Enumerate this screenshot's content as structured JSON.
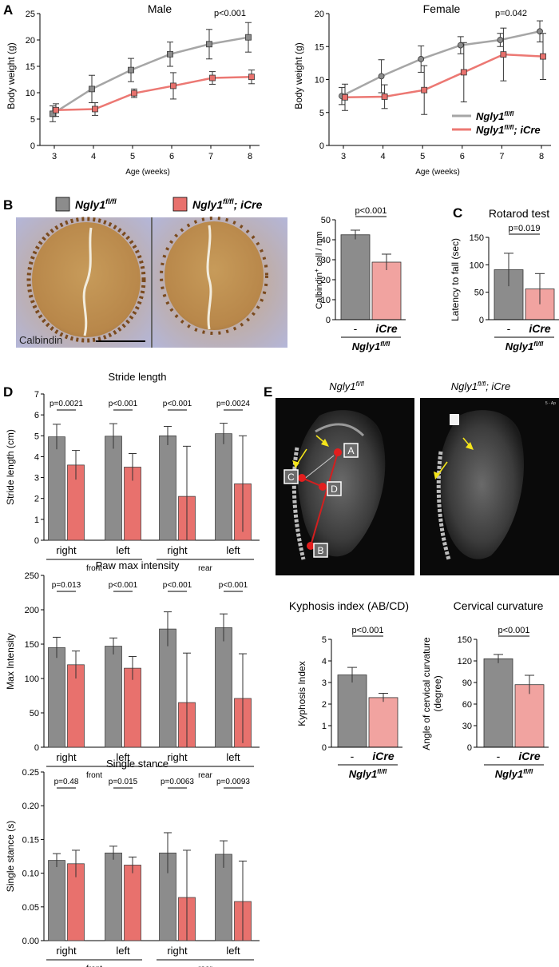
{
  "colors": {
    "gray": "#8c8c8c",
    "gray_line": "#a6a6a6",
    "red": "#e8716d",
    "red_line": "#ec7873",
    "bar_pink": "#f1a3a0"
  },
  "panels": {
    "A": {
      "letter": "A",
      "male": {
        "title": "Male",
        "pvalue": "p<0.001",
        "ylabel": "Body weight (g)",
        "xlabel": "Age (weeks)",
        "x": [
          3,
          4,
          5,
          6,
          7,
          8
        ],
        "yticks": [
          "0",
          "5",
          "10",
          "15",
          "20",
          "25"
        ],
        "ylim": [
          0,
          25
        ],
        "gray": {
          "mean": [
            6.0,
            10.7,
            14.3,
            17.3,
            19.2,
            20.5
          ],
          "sd": [
            1.5,
            2.6,
            2.2,
            2.3,
            2.8,
            2.8
          ]
        },
        "red": {
          "mean": [
            6.7,
            6.9,
            9.9,
            11.3,
            12.8,
            13.0
          ],
          "sd": [
            1.2,
            1.2,
            0.8,
            2.5,
            1.2,
            1.3
          ]
        }
      },
      "female": {
        "title": "Female",
        "pvalue": "p=0.042",
        "ylabel": "Body weight (g)",
        "xlabel": "Age (weeks)",
        "x": [
          3,
          4,
          5,
          6,
          7,
          8
        ],
        "yticks": [
          "0",
          "5",
          "10",
          "15",
          "20"
        ],
        "ylim": [
          0,
          20
        ],
        "gray": {
          "mean": [
            7.5,
            10.5,
            13.1,
            15.2,
            16.0,
            17.3
          ],
          "sd": [
            1.3,
            2.5,
            2.0,
            1.3,
            1.0,
            1.6
          ]
        },
        "red": {
          "mean": [
            7.3,
            7.4,
            8.4,
            11.1,
            13.8,
            13.5
          ],
          "sd": [
            2.0,
            1.8,
            3.7,
            4.5,
            4.0,
            3.5
          ]
        }
      },
      "legend": [
        {
          "name": "Ngly1",
          "sup": "fl/fl",
          "suffix": ""
        },
        {
          "name": "Ngly1",
          "sup": "fl/fl",
          "suffix": "; iCre"
        }
      ]
    },
    "B": {
      "letter": "B",
      "legend": [
        {
          "name": "Ngly1",
          "sup": "fl/fl",
          "suffix": ""
        },
        {
          "name": "Ngly1",
          "sup": "fl/fl",
          "suffix": "; iCre"
        }
      ],
      "stain_label": "Calbindin",
      "chart": {
        "ylabel_main": "Calbindin",
        "ylabel_sup": "+",
        "ylabel_rest": " cell / mm",
        "pvalue": "p<0.001",
        "yticks": [
          "0",
          "10",
          "20",
          "30",
          "40",
          "50"
        ],
        "ylim": [
          0,
          50
        ],
        "categories": [
          "-",
          "iCre"
        ],
        "values": [
          42.5,
          28.8
        ],
        "sd": [
          2.3,
          4.0
        ],
        "group_label": "Ngly1",
        "group_sup": "fl/fl"
      }
    },
    "C": {
      "letter": "C",
      "title": "Rotarod test",
      "chart": {
        "ylabel": "Latency to fall (sec)",
        "pvalue": "p=0.019",
        "yticks": [
          "0",
          "50",
          "100",
          "150"
        ],
        "ylim": [
          0,
          150
        ],
        "categories": [
          "-",
          "iCre"
        ],
        "values": [
          91,
          56
        ],
        "sd": [
          30,
          28
        ],
        "group_label": "Ngly1",
        "group_sup": "fl/fl"
      }
    },
    "D": {
      "letter": "D",
      "charts": [
        {
          "title": "Stride length",
          "ylabel": "Stride length (cm)",
          "yticks": [
            "0",
            "1",
            "2",
            "3",
            "4",
            "5",
            "6",
            "7"
          ],
          "ylim": [
            0,
            7
          ],
          "pvalues": [
            "p=0.0021",
            "p<0.001",
            "p<0.001",
            "p=0.0024"
          ],
          "values": [
            [
              4.95,
              3.6
            ],
            [
              4.98,
              3.5
            ],
            [
              5.0,
              2.1
            ],
            [
              5.1,
              2.7
            ]
          ],
          "sd": [
            [
              0.6,
              0.7
            ],
            [
              0.6,
              0.65
            ],
            [
              0.45,
              2.4
            ],
            [
              0.5,
              2.3
            ]
          ]
        },
        {
          "title": "Paw max intensity",
          "ylabel": "Max Intensity",
          "yticks": [
            "0",
            "50",
            "100",
            "150",
            "200",
            "250"
          ],
          "ylim": [
            0,
            250
          ],
          "pvalues": [
            "p=0.013",
            "p<0.001",
            "p<0.001",
            "p<0.001"
          ],
          "values": [
            [
              145,
              120
            ],
            [
              147,
              115
            ],
            [
              172,
              65
            ],
            [
              174,
              71
            ]
          ],
          "sd": [
            [
              15,
              20
            ],
            [
              12,
              17
            ],
            [
              25,
              72
            ],
            [
              20,
              65
            ]
          ]
        },
        {
          "title": "Single stance",
          "ylabel": "Single stance (s)",
          "yticks": [
            "0.00",
            "0.05",
            "0.10",
            "0.15",
            "0.20",
            "0.25"
          ],
          "ylim": [
            0,
            0.25
          ],
          "pvalues": [
            "p=0.48",
            "p=0.015",
            "p=0.0063",
            "p=0.0093"
          ],
          "values": [
            [
              0.119,
              0.114
            ],
            [
              0.13,
              0.112
            ],
            [
              0.13,
              0.064
            ],
            [
              0.128,
              0.058
            ]
          ],
          "sd": [
            [
              0.01,
              0.02
            ],
            [
              0.01,
              0.012
            ],
            [
              0.03,
              0.07
            ],
            [
              0.02,
              0.06
            ]
          ]
        }
      ],
      "sides": [
        "right",
        "left",
        "right",
        "left"
      ],
      "positions": [
        "front",
        "rear"
      ]
    },
    "E": {
      "letter": "E",
      "xray_titles": [
        {
          "name": "Ngly1",
          "sup": "fl/fl",
          "suffix": ""
        },
        {
          "name": "Ngly1",
          "sup": "fl/fl",
          "suffix": "; iCre"
        }
      ],
      "points": [
        "A",
        "B",
        "C",
        "D"
      ],
      "corner_text": "5 - Ap",
      "kyphosis": {
        "title": "Kyphosis index (AB/CD)",
        "ylabel": "Kyphosis Index",
        "pvalue": "p<0.001",
        "yticks": [
          "0",
          "1",
          "2",
          "3",
          "4",
          "5"
        ],
        "ylim": [
          0,
          5
        ],
        "categories": [
          "-",
          "iCre"
        ],
        "values": [
          3.35,
          2.3
        ],
        "sd": [
          0.35,
          0.2
        ],
        "group_label": "Ngly1",
        "group_sup": "fl/fl"
      },
      "cervical": {
        "title": "Cervical curvature",
        "ylabel": "Angle of cervical curvature (degree)",
        "ylabel_lines": [
          "Angle of cervical curvature",
          "(degree)"
        ],
        "pvalue": "p<0.001",
        "yticks": [
          "0",
          "30",
          "60",
          "90",
          "120",
          "150"
        ],
        "ylim": [
          0,
          150
        ],
        "categories": [
          "-",
          "iCre"
        ],
        "values": [
          123,
          87
        ],
        "sd": [
          6,
          13
        ],
        "group_label": "Ngly1",
        "group_sup": "fl/fl"
      }
    }
  },
  "chart_data": [
    {
      "type": "line",
      "title": "Male",
      "xlabel": "Age (weeks)",
      "ylabel": "Body weight (g)",
      "x": [
        3,
        4,
        5,
        6,
        7,
        8
      ],
      "ylim": [
        0,
        25
      ],
      "series": [
        {
          "name": "Ngly1 fl/fl",
          "values": [
            6.0,
            10.7,
            14.3,
            17.3,
            19.2,
            20.5
          ]
        },
        {
          "name": "Ngly1 fl/fl; iCre",
          "values": [
            6.7,
            6.9,
            9.9,
            11.3,
            12.8,
            13.0
          ]
        }
      ]
    },
    {
      "type": "line",
      "title": "Female",
      "xlabel": "Age (weeks)",
      "ylabel": "Body weight (g)",
      "x": [
        3,
        4,
        5,
        6,
        7,
        8
      ],
      "ylim": [
        0,
        20
      ],
      "series": [
        {
          "name": "Ngly1 fl/fl",
          "values": [
            7.5,
            10.5,
            13.1,
            15.2,
            16.0,
            17.3
          ]
        },
        {
          "name": "Ngly1 fl/fl; iCre",
          "values": [
            7.3,
            7.4,
            8.4,
            11.1,
            13.8,
            13.5
          ]
        }
      ]
    },
    {
      "type": "bar",
      "ylabel": "Calbindin+ cell / mm",
      "categories": [
        "-",
        "iCre"
      ],
      "values": [
        42.5,
        28.8
      ],
      "ylim": [
        0,
        50
      ]
    },
    {
      "type": "bar",
      "title": "Rotarod test",
      "ylabel": "Latency to fall (sec)",
      "categories": [
        "-",
        "iCre"
      ],
      "values": [
        91,
        56
      ],
      "ylim": [
        0,
        150
      ]
    },
    {
      "type": "bar",
      "title": "Stride length",
      "ylabel": "Stride length (cm)",
      "categories": [
        "front right",
        "front left",
        "rear right",
        "rear left"
      ],
      "series": [
        {
          "name": "Ngly1 fl/fl",
          "values": [
            4.95,
            4.98,
            5.0,
            5.1
          ]
        },
        {
          "name": "Ngly1 fl/fl; iCre",
          "values": [
            3.6,
            3.5,
            2.1,
            2.7
          ]
        }
      ],
      "ylim": [
        0,
        7
      ]
    },
    {
      "type": "bar",
      "title": "Paw max intensity",
      "ylabel": "Max Intensity",
      "categories": [
        "front right",
        "front left",
        "rear right",
        "rear left"
      ],
      "series": [
        {
          "name": "Ngly1 fl/fl",
          "values": [
            145,
            147,
            172,
            174
          ]
        },
        {
          "name": "Ngly1 fl/fl; iCre",
          "values": [
            120,
            115,
            65,
            71
          ]
        }
      ],
      "ylim": [
        0,
        250
      ]
    },
    {
      "type": "bar",
      "title": "Single stance",
      "ylabel": "Single stance (s)",
      "categories": [
        "front right",
        "front left",
        "rear right",
        "rear left"
      ],
      "series": [
        {
          "name": "Ngly1 fl/fl",
          "values": [
            0.119,
            0.13,
            0.13,
            0.128
          ]
        },
        {
          "name": "Ngly1 fl/fl; iCre",
          "values": [
            0.114,
            0.112,
            0.064,
            0.058
          ]
        }
      ],
      "ylim": [
        0,
        0.25
      ]
    },
    {
      "type": "bar",
      "title": "Kyphosis index (AB/CD)",
      "ylabel": "Kyphosis Index",
      "categories": [
        "-",
        "iCre"
      ],
      "values": [
        3.35,
        2.3
      ],
      "ylim": [
        0,
        5
      ]
    },
    {
      "type": "bar",
      "title": "Cervical curvature",
      "ylabel": "Angle of cervical curvature (degree)",
      "categories": [
        "-",
        "iCre"
      ],
      "values": [
        123,
        87
      ],
      "ylim": [
        0,
        150
      ]
    }
  ]
}
